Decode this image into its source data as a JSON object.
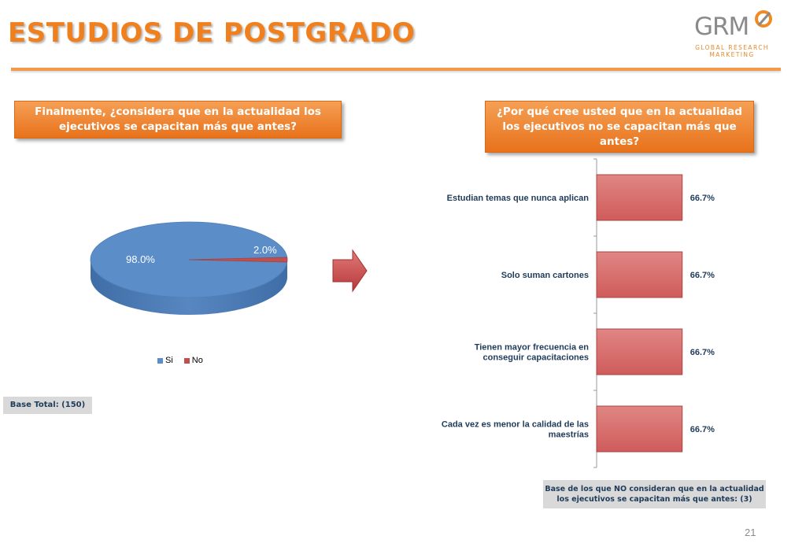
{
  "header": {
    "title": "ESTUDIOS DE POSTGRADO",
    "logo_word": "GRM",
    "logo_sub_1": "GLOBAL RESEARCH",
    "logo_sub_2": "MARKETING"
  },
  "left_question": "Finalmente, ¿considera que en la actualidad los ejecutivos se capacitan más que antes?",
  "right_question": "¿Por qué cree usted que en la actualidad los ejecutivos no se capacitan más que antes?",
  "base_left": "Base Total: (150)",
  "base_right": "Base de los que NO consideran que en la actualidad los ejecutivos se capacitan más que antes: (3)",
  "page_number": "21",
  "colors": {
    "orange": "#f07f1e",
    "pie_blue": "#5b8dc9",
    "pie_red": "#c0504d",
    "bar_fill": "#d9686a"
  },
  "chart_data": [
    {
      "type": "pie",
      "categories": [
        "Si",
        "No"
      ],
      "values": [
        98.0,
        2.0
      ],
      "value_labels": [
        "98.0%",
        "2.0%"
      ],
      "legend_position": "bottom",
      "colors": [
        "#5b8dc9",
        "#c0504d"
      ]
    },
    {
      "type": "bar",
      "orientation": "horizontal",
      "categories": [
        "Estudian temas que nunca aplican",
        "Solo suman cartones",
        "Tienen mayor frecuencia en conseguir capacitaciones",
        "Cada vez es menor la calidad de las maestrías"
      ],
      "category_lines": [
        [
          "Estudian temas que nunca aplican"
        ],
        [
          "Solo suman cartones"
        ],
        [
          "Tienen mayor frecuencia en",
          "conseguir capacitaciones"
        ],
        [
          "Cada vez es menor la calidad de las",
          "maestrías"
        ]
      ],
      "values": [
        66.7,
        66.7,
        66.7,
        66.7
      ],
      "value_labels": [
        "66.7%",
        "66.7%",
        "66.7%",
        "66.7%"
      ],
      "xlim": [
        0,
        100
      ],
      "grid": false
    }
  ]
}
